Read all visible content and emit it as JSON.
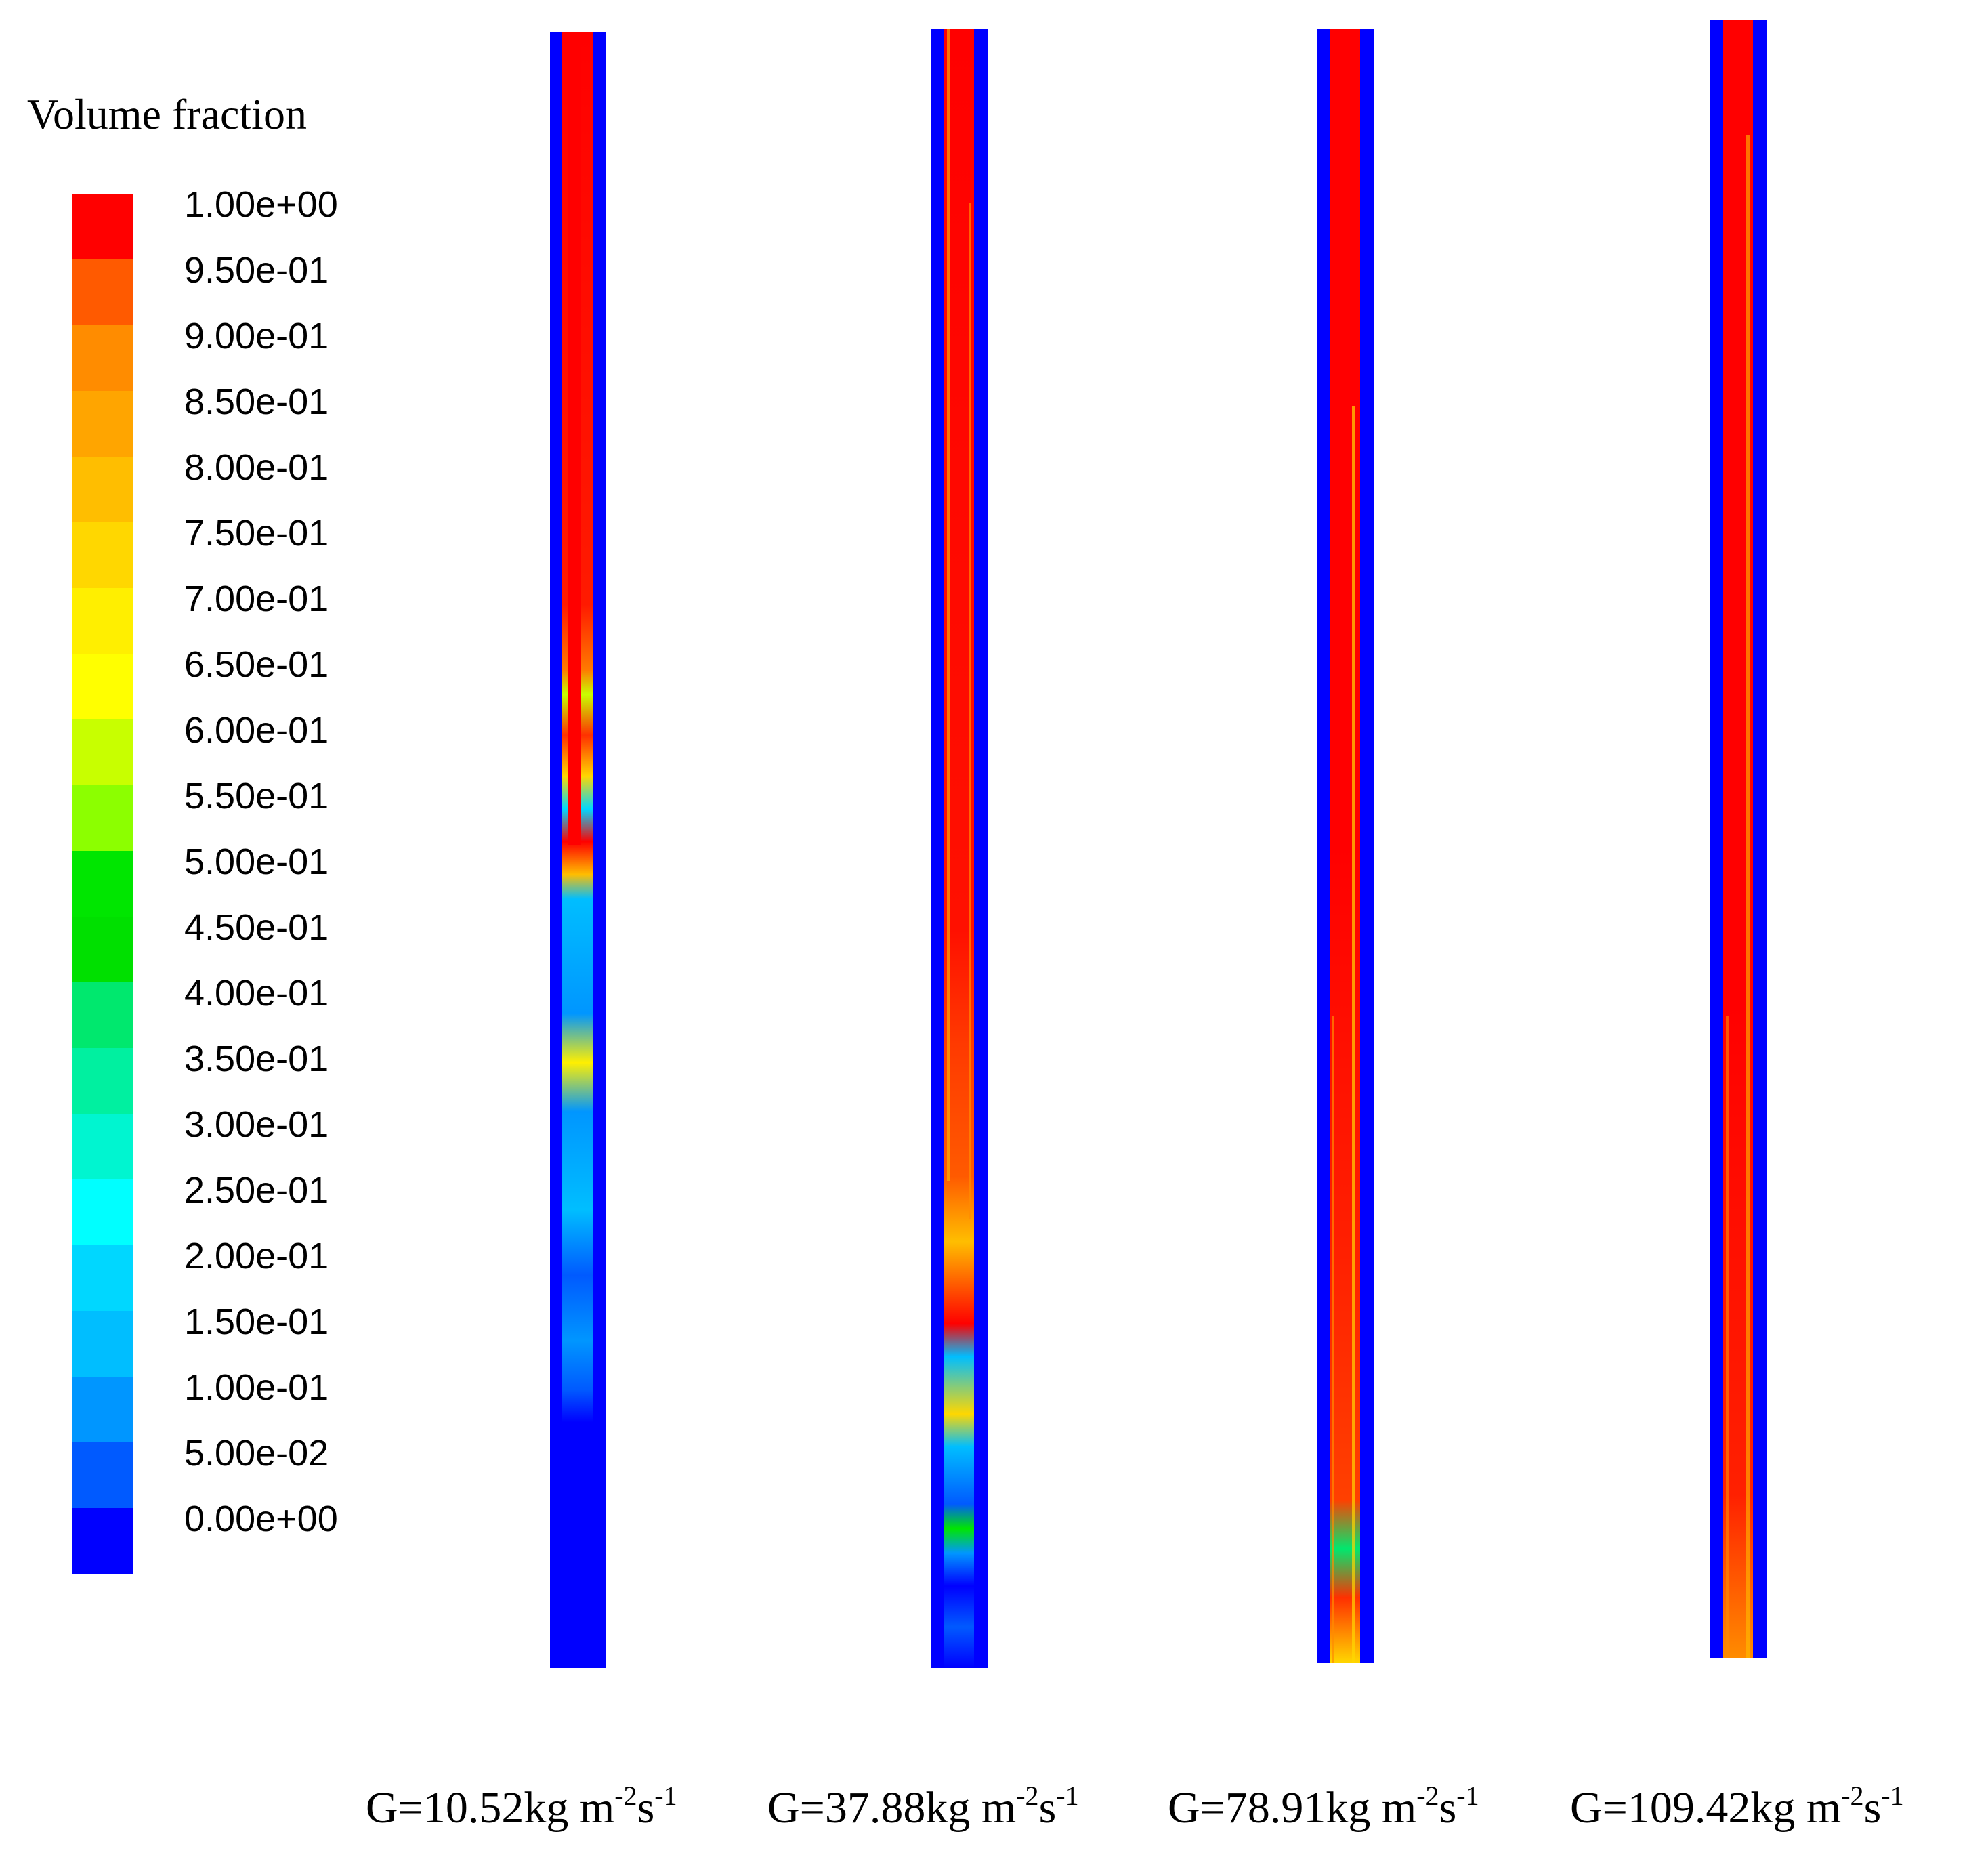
{
  "legend": {
    "title": "Volume fraction",
    "levels": [
      {
        "label": "1.00e+00",
        "color": "#ff0000"
      },
      {
        "label": "9.50e-01",
        "color": "#ff5a00"
      },
      {
        "label": "9.00e-01",
        "color": "#ff8c00"
      },
      {
        "label": "8.50e-01",
        "color": "#ffa500"
      },
      {
        "label": "8.00e-01",
        "color": "#ffbe00"
      },
      {
        "label": "7.50e-01",
        "color": "#ffd700"
      },
      {
        "label": "7.00e-01",
        "color": "#ffef00"
      },
      {
        "label": "6.50e-01",
        "color": "#ffff00"
      },
      {
        "label": "6.00e-01",
        "color": "#c8ff00"
      },
      {
        "label": "5.50e-01",
        "color": "#8cff00"
      },
      {
        "label": "5.00e-01",
        "color": "#00e600"
      },
      {
        "label": "4.50e-01",
        "color": "#00e000"
      },
      {
        "label": "4.00e-01",
        "color": "#00e86e"
      },
      {
        "label": "3.50e-01",
        "color": "#00f0a0"
      },
      {
        "label": "3.00e-01",
        "color": "#00f5d0"
      },
      {
        "label": "2.50e-01",
        "color": "#00ffff"
      },
      {
        "label": "2.00e-01",
        "color": "#00d7ff"
      },
      {
        "label": "1.50e-01",
        "color": "#00beff"
      },
      {
        "label": "1.00e-01",
        "color": "#0096ff"
      },
      {
        "label": "5.00e-02",
        "color": "#005aff"
      },
      {
        "label": "0.00e+00",
        "color": "#0000ff"
      }
    ]
  },
  "tubes": [
    {
      "label_main": "G=10.52kg m",
      "sup1": "-2",
      "label_mid": "s",
      "sup2": "-1"
    },
    {
      "label_main": "G=37.88kg m",
      "sup1": "-2",
      "label_mid": "s",
      "sup2": "-1"
    },
    {
      "label_main": "G=78.91kg m",
      "sup1": "-2",
      "label_mid": "s",
      "sup2": "-1"
    },
    {
      "label_main": "G=109.42kg m",
      "sup1": "-2",
      "label_mid": "s",
      "sup2": "-1"
    }
  ]
}
